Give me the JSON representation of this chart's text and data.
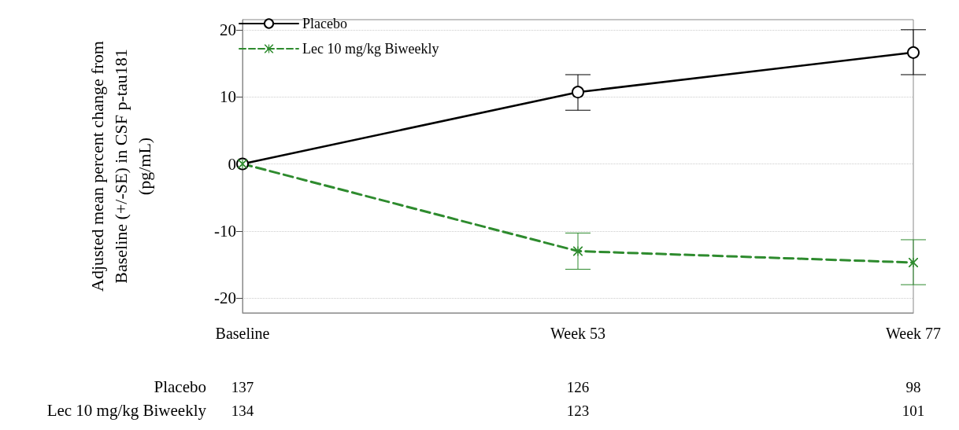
{
  "chart_data": {
    "type": "line",
    "ylabel": "Adjusted mean percent change from Baseline (+/-SE) in CSF p-tau181 (pg/mL)",
    "categories": [
      "Baseline",
      "Week 53",
      "Week 77"
    ],
    "ylim": [
      -22.2,
      21.5
    ],
    "yticks": [
      -20,
      -10,
      0,
      10,
      20
    ],
    "grid": "y",
    "legend": "top left",
    "series": [
      {
        "name": "Placebo",
        "color": "#000000",
        "values": [
          0,
          10.7,
          16.6
        ],
        "errors": [
          null,
          [
            8.0,
            13.3
          ],
          [
            13.3,
            20.0
          ]
        ],
        "marker": "circle",
        "line_style": "solid"
      },
      {
        "name": "Lec 10 mg/kg Biweekly",
        "color": "#2e8b2e",
        "values": [
          0,
          -13.0,
          -14.7
        ],
        "errors": [
          null,
          [
            -15.7,
            -10.3
          ],
          [
            -18.0,
            -11.3
          ]
        ],
        "marker": "cross",
        "line_style": "dashed"
      }
    ],
    "annotations": [
      "Placebo",
      "137",
      "126",
      "98",
      "Lec 10 mg/kg Biweekly",
      "134",
      "123",
      "101"
    ]
  }
}
